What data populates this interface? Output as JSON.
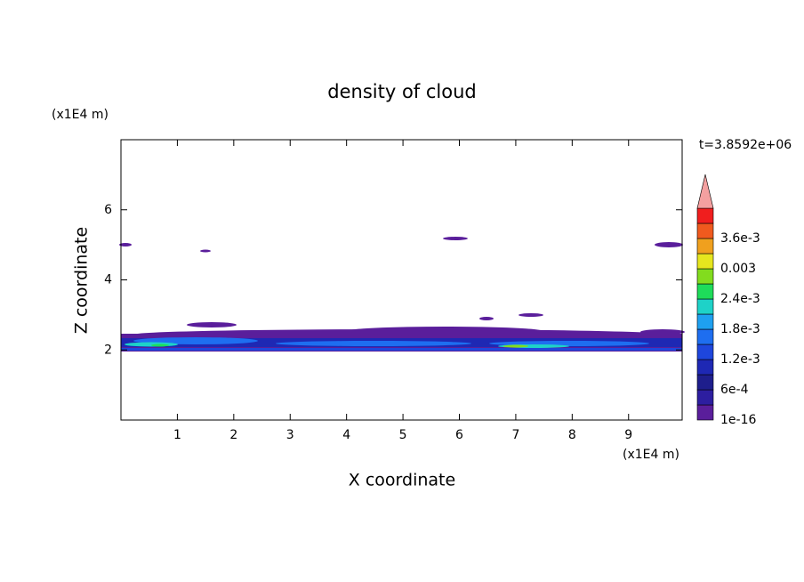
{
  "chart_data": {
    "type": "contour",
    "title": "density of cloud",
    "x_label": "X coordinate",
    "y_label": "Z coordinate",
    "x_unit": "(x1E4 m)",
    "y_unit": "(x1E4 m)",
    "time_label": "t=3.8592e+06",
    "xlim": [
      0,
      9.95
    ],
    "ylim": [
      0,
      8
    ],
    "xticks": [
      1,
      2,
      3,
      4,
      5,
      6,
      7,
      8,
      9
    ],
    "yticks": [
      2,
      4,
      6
    ],
    "colorbar_colors": [
      "#5a1e9b",
      "#2d1ea0",
      "#1e1e8c",
      "#1e28b4",
      "#1e46dc",
      "#1e6ef0",
      "#1ea0f0",
      "#1ed2c8",
      "#1edc5a",
      "#82dc1e",
      "#e6e61e",
      "#f0a01e",
      "#f05a1e",
      "#f01e1e"
    ],
    "colorbar_over_color": "#f4a0a0",
    "colorbar_labels": [
      {
        "value": 1e-16,
        "label": "1e-16"
      },
      {
        "value": 0.0006,
        "label": "6e-4"
      },
      {
        "value": 0.0012,
        "label": "1.2e-3"
      },
      {
        "value": 0.0018,
        "label": "1.8e-3"
      },
      {
        "value": 0.0024,
        "label": "2.4e-3"
      },
      {
        "value": 0.003,
        "label": "0.003"
      },
      {
        "value": 0.0036,
        "label": "3.6e-3"
      }
    ]
  }
}
